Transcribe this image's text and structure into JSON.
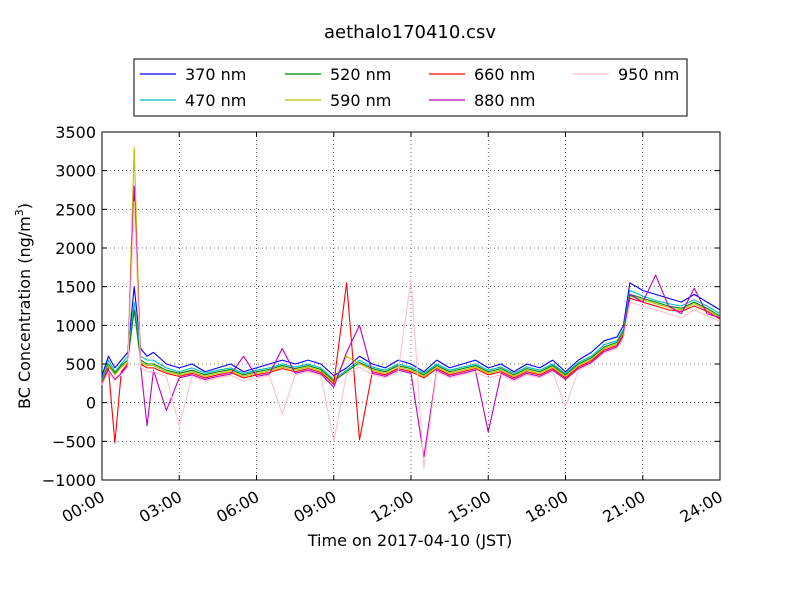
{
  "chart_data": {
    "type": "line",
    "title": "aethalo170410.csv",
    "xlabel": "Time on 2017-04-10 (JST)",
    "ylabel_main": "BC Concentration (ng/m",
    "ylabel_sup": "3",
    "ylabel_end": ")",
    "xlim": [
      0,
      24
    ],
    "ylim": [
      -1000,
      3500
    ],
    "x_ticks": [
      0,
      3,
      6,
      9,
      12,
      15,
      18,
      21,
      24
    ],
    "x_tick_labels": [
      "00:00",
      "03:00",
      "06:00",
      "09:00",
      "12:00",
      "15:00",
      "18:00",
      "21:00",
      "24:00"
    ],
    "y_ticks": [
      -1000,
      -500,
      0,
      500,
      1000,
      1500,
      2000,
      2500,
      3000,
      3500
    ],
    "y_tick_labels": [
      "−1000",
      "−500",
      "0",
      "500",
      "1000",
      "1500",
      "2000",
      "2500",
      "3000",
      "3500"
    ],
    "grid": true,
    "legend_position": "top",
    "x_unit": "hour",
    "series": [
      {
        "name": "370 nm",
        "color": "#0000ff",
        "x": [
          0,
          0.25,
          0.5,
          0.75,
          1,
          1.25,
          1.5,
          1.75,
          2,
          2.5,
          3,
          3.5,
          4,
          4.5,
          5,
          5.5,
          6,
          6.5,
          7,
          7.5,
          8,
          8.5,
          9,
          9.5,
          10,
          10.5,
          11,
          11.5,
          12,
          12.5,
          13,
          13.5,
          14,
          14.5,
          15,
          15.5,
          16,
          16.5,
          17,
          17.5,
          18,
          18.5,
          19,
          19.5,
          20,
          20.25,
          20.5,
          21,
          21.5,
          22,
          22.5,
          23,
          23.5,
          24
        ],
        "y": [
          350,
          600,
          450,
          550,
          650,
          1500,
          700,
          600,
          650,
          500,
          450,
          500,
          400,
          450,
          500,
          400,
          450,
          500,
          550,
          500,
          550,
          500,
          350,
          450,
          600,
          500,
          450,
          550,
          500,
          400,
          550,
          450,
          500,
          550,
          450,
          500,
          400,
          500,
          450,
          550,
          400,
          550,
          650,
          800,
          850,
          1000,
          1550,
          1450,
          1400,
          1350,
          1300,
          1400,
          1300,
          1200
        ]
      },
      {
        "name": "470 nm",
        "color": "#00c0bf",
        "x": [
          0,
          0.25,
          0.5,
          0.75,
          1,
          1.25,
          1.5,
          1.75,
          2,
          2.5,
          3,
          3.5,
          4,
          4.5,
          5,
          5.5,
          6,
          6.5,
          7,
          7.5,
          8,
          8.5,
          9,
          9.5,
          10,
          10.5,
          11,
          11.5,
          12,
          12.5,
          13,
          13.5,
          14,
          14.5,
          15,
          15.5,
          16,
          16.5,
          17,
          17.5,
          18,
          18.5,
          19,
          19.5,
          20,
          20.25,
          20.5,
          21,
          21.5,
          22,
          22.5,
          23,
          23.5,
          24
        ],
        "y": [
          300,
          550,
          400,
          500,
          600,
          1300,
          600,
          550,
          550,
          450,
          400,
          450,
          380,
          420,
          450,
          380,
          420,
          450,
          500,
          460,
          500,
          450,
          300,
          420,
          550,
          460,
          420,
          500,
          460,
          380,
          500,
          420,
          460,
          500,
          420,
          460,
          380,
          460,
          420,
          500,
          380,
          520,
          600,
          750,
          800,
          950,
          1450,
          1380,
          1320,
          1280,
          1250,
          1330,
          1250,
          1150
        ]
      },
      {
        "name": "520 nm",
        "color": "#008000",
        "x": [
          0,
          0.25,
          0.5,
          0.75,
          1,
          1.25,
          1.5,
          1.75,
          2,
          2.5,
          3,
          3.5,
          4,
          4.5,
          5,
          5.5,
          6,
          6.5,
          7,
          7.5,
          8,
          8.5,
          9,
          9.5,
          10,
          10.5,
          11,
          11.5,
          12,
          12.5,
          13,
          13.5,
          14,
          14.5,
          15,
          15.5,
          16,
          16.5,
          17,
          17.5,
          18,
          18.5,
          19,
          19.5,
          20,
          20.25,
          20.5,
          21,
          21.5,
          22,
          22.5,
          23,
          23.5,
          24
        ],
        "y": [
          280,
          500,
          380,
          480,
          550,
          1200,
          550,
          500,
          500,
          420,
          380,
          420,
          360,
          400,
          430,
          360,
          400,
          430,
          480,
          440,
          480,
          430,
          280,
          400,
          520,
          440,
          400,
          480,
          440,
          360,
          480,
          400,
          440,
          480,
          400,
          440,
          360,
          440,
          400,
          480,
          360,
          500,
          580,
          720,
          780,
          920,
          1400,
          1350,
          1300,
          1250,
          1220,
          1300,
          1220,
          1120
        ]
      },
      {
        "name": "590 nm",
        "color": "#bfbf00",
        "x": [
          0,
          0.25,
          0.5,
          0.75,
          1,
          1.25,
          1.5,
          1.75,
          2,
          2.5,
          3,
          3.5,
          4,
          4.5,
          5,
          5.5,
          6,
          6.5,
          7,
          7.5,
          8,
          8.5,
          9,
          9.5,
          10,
          10.5,
          11,
          11.5,
          12,
          12.5,
          13,
          13.5,
          14,
          14.5,
          15,
          15.5,
          16,
          16.5,
          17,
          17.5,
          18,
          18.5,
          19,
          19.5,
          20,
          20.25,
          20.5,
          21,
          21.5,
          22,
          22.5,
          23,
          23.5,
          24
        ],
        "y": [
          260,
          480,
          360,
          460,
          520,
          3300,
          520,
          480,
          480,
          400,
          360,
          400,
          340,
          380,
          410,
          340,
          380,
          410,
          460,
          420,
          460,
          410,
          260,
          600,
          500,
          420,
          380,
          460,
          420,
          340,
          460,
          380,
          420,
          460,
          380,
          420,
          340,
          420,
          380,
          460,
          340,
          480,
          560,
          700,
          760,
          900,
          1380,
          1330,
          1280,
          1230,
          1200,
          1280,
          1200,
          1100
        ]
      },
      {
        "name": "660 nm",
        "color": "#ff0000",
        "x": [
          0,
          0.25,
          0.5,
          0.75,
          1,
          1.25,
          1.5,
          1.75,
          2,
          2.5,
          3,
          3.5,
          4,
          4.5,
          5,
          5.5,
          6,
          6.5,
          7,
          7.5,
          8,
          8.5,
          9,
          9.5,
          10,
          10.5,
          11,
          11.5,
          12,
          12.5,
          13,
          13.5,
          14,
          14.5,
          15,
          15.5,
          16,
          16.5,
          17,
          17.5,
          18,
          18.5,
          19,
          19.5,
          20,
          20.25,
          20.5,
          21,
          21.5,
          22,
          22.5,
          23,
          23.5,
          24
        ],
        "y": [
          250,
          450,
          -520,
          400,
          500,
          2750,
          500,
          450,
          450,
          380,
          340,
          380,
          320,
          360,
          390,
          320,
          360,
          390,
          440,
          400,
          440,
          390,
          240,
          1550,
          -480,
          400,
          360,
          440,
          400,
          320,
          440,
          360,
          400,
          440,
          360,
          400,
          320,
          400,
          360,
          440,
          320,
          460,
          540,
          680,
          740,
          880,
          1350,
          1300,
          1250,
          1200,
          1180,
          1250,
          1180,
          1080
        ]
      },
      {
        "name": "880 nm",
        "color": "#bf00bf",
        "x": [
          0,
          0.25,
          0.5,
          0.75,
          1,
          1.25,
          1.5,
          1.75,
          2,
          2.5,
          3,
          3.5,
          4,
          4.5,
          5,
          5.5,
          6,
          6.5,
          7,
          7.5,
          8,
          8.5,
          9,
          9.5,
          10,
          10.5,
          11,
          11.5,
          12,
          12.5,
          13,
          13.5,
          14,
          14.5,
          15,
          15.5,
          16,
          16.5,
          17,
          17.5,
          18,
          18.5,
          19,
          19.5,
          20,
          20.25,
          20.5,
          21,
          21.5,
          22,
          22.5,
          23,
          23.5,
          24
        ],
        "y": [
          240,
          420,
          300,
          380,
          480,
          2800,
          480,
          -300,
          420,
          -100,
          320,
          360,
          300,
          340,
          370,
          600,
          340,
          370,
          700,
          380,
          420,
          370,
          200,
          650,
          1000,
          380,
          340,
          420,
          380,
          -700,
          420,
          340,
          380,
          420,
          -380,
          380,
          300,
          380,
          340,
          420,
          300,
          440,
          520,
          660,
          720,
          860,
          1400,
          1300,
          1650,
          1250,
          1150,
          1480,
          1150,
          1100
        ]
      },
      {
        "name": "950 nm",
        "color": "#ffc0cb",
        "x": [
          0,
          0.25,
          0.5,
          0.75,
          1,
          1.25,
          1.5,
          1.75,
          2,
          2.5,
          3,
          3.5,
          4,
          4.5,
          5,
          5.5,
          6,
          6.5,
          7,
          7.5,
          8,
          8.5,
          9,
          9.5,
          10,
          10.5,
          11,
          11.5,
          12,
          12.5,
          13,
          13.5,
          14,
          14.5,
          15,
          15.5,
          16,
          16.5,
          17,
          17.5,
          18,
          18.5,
          19,
          19.5,
          20,
          20.25,
          20.5,
          21,
          21.5,
          22,
          22.5,
          23,
          23.5,
          24
        ],
        "y": [
          230,
          400,
          280,
          360,
          460,
          2600,
          460,
          400,
          400,
          340,
          -300,
          340,
          280,
          320,
          350,
          280,
          320,
          350,
          -150,
          360,
          400,
          350,
          -500,
          380,
          460,
          360,
          320,
          400,
          1600,
          -850,
          400,
          320,
          360,
          400,
          320,
          360,
          280,
          360,
          320,
          400,
          -50,
          420,
          500,
          640,
          700,
          840,
          1300,
          1250,
          1200,
          1150,
          1100,
          1200,
          1120,
          1050
        ]
      }
    ]
  }
}
